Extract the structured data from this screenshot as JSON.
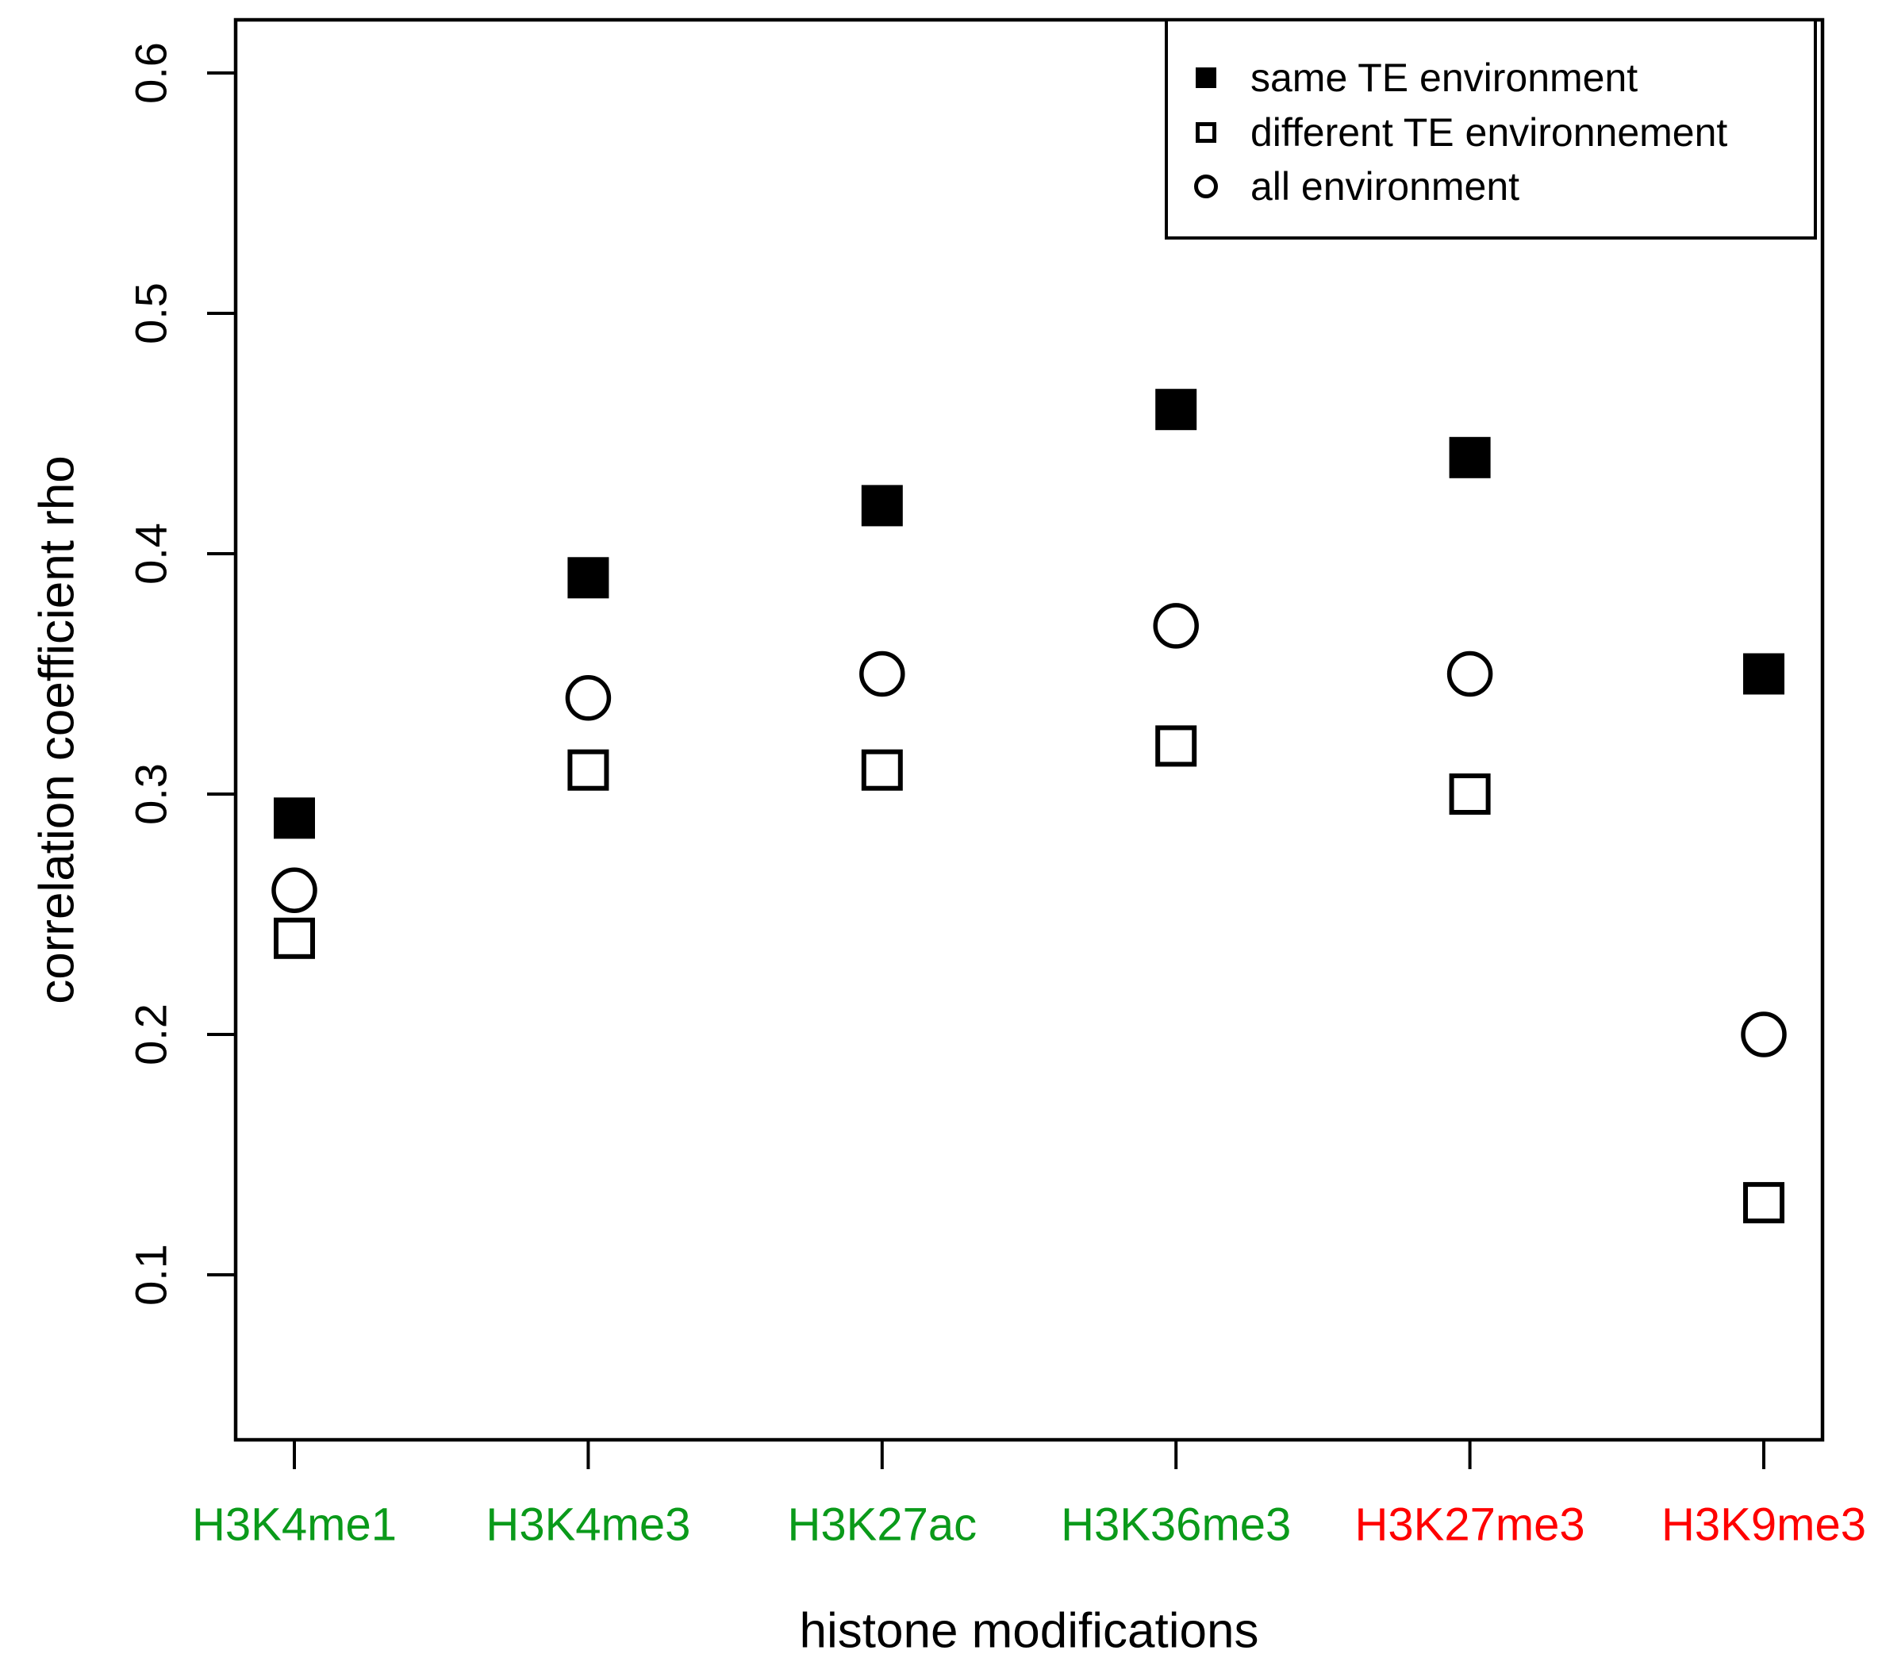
{
  "colors": {
    "green_label": "#0a9a1a",
    "red_label": "#ff0000",
    "marker_black": "#000000"
  },
  "chart_data": {
    "type": "scatter",
    "title": "",
    "xlabel": "histone modifications",
    "ylabel": "correlation coefficient rho",
    "categories": [
      "H3K4me1",
      "H3K4me3",
      "H3K27ac",
      "H3K36me3",
      "H3K27me3",
      "H3K9me3"
    ],
    "category_colors": [
      "green",
      "green",
      "green",
      "green",
      "red",
      "red"
    ],
    "series": [
      {
        "name": "same TE environment",
        "marker": "filled-square",
        "values": [
          0.29,
          0.39,
          0.42,
          0.46,
          0.44,
          0.35
        ]
      },
      {
        "name": "different TE environnement",
        "marker": "open-square",
        "values": [
          0.24,
          0.31,
          0.31,
          0.32,
          0.3,
          0.13
        ]
      },
      {
        "name": "all environment",
        "marker": "open-circle",
        "values": [
          0.26,
          0.34,
          0.35,
          0.37,
          0.35,
          0.2
        ]
      }
    ],
    "yticks": [
      0.1,
      0.2,
      0.3,
      0.4,
      0.5,
      0.6
    ],
    "ylim": [
      0.03,
      0.62
    ],
    "grid": false,
    "legend_position": "top-right"
  }
}
